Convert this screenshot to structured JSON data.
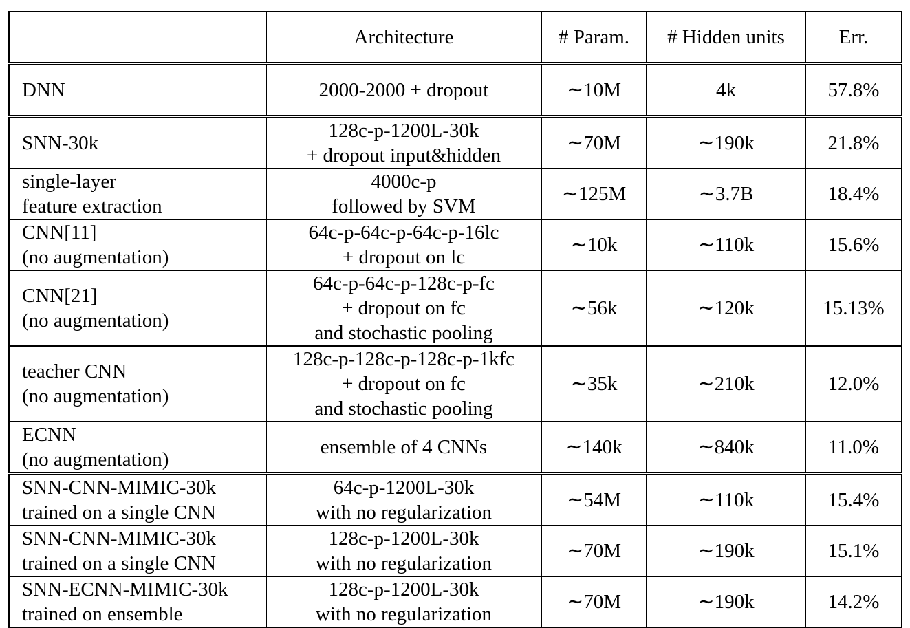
{
  "headers": [
    "",
    "Architecture",
    "# Param.",
    "# Hidden units",
    "Err."
  ],
  "rows": [
    {
      "model": [
        "DNN"
      ],
      "arch": [
        "2000-2000 + dropout"
      ],
      "params": "∼10M",
      "hidden": "4k",
      "err": "57.8%",
      "bold": false,
      "lines": 1
    },
    {
      "model": [
        "SNN-30k"
      ],
      "arch": [
        "128c-p-1200L-30k",
        "+ dropout input&hidden"
      ],
      "params": "∼70M",
      "hidden": "∼190k",
      "err": "21.8%",
      "bold": false,
      "lines": 2
    },
    {
      "model": [
        "single-layer",
        "feature extraction"
      ],
      "arch": [
        "4000c-p",
        "followed by SVM"
      ],
      "params": "∼125M",
      "hidden": "∼3.7B",
      "err": "18.4%",
      "bold": false,
      "lines": 2
    },
    {
      "model": [
        "CNN[11]",
        "(no augmentation)"
      ],
      "arch": [
        "64c-p-64c-p-64c-p-16lc",
        "+ dropout on lc"
      ],
      "params": "∼10k",
      "hidden": "∼110k",
      "err": "15.6%",
      "bold": false,
      "lines": 2
    },
    {
      "model": [
        "CNN[21]",
        "(no augmentation)"
      ],
      "arch": [
        "64c-p-64c-p-128c-p-fc",
        "+ dropout on fc",
        "and stochastic pooling"
      ],
      "params": "∼56k",
      "hidden": "∼120k",
      "err": "15.13%",
      "bold": false,
      "lines": 3
    },
    {
      "model": [
        "teacher CNN",
        "(no augmentation)"
      ],
      "arch": [
        "128c-p-128c-p-128c-p-1kfc",
        "+ dropout on fc",
        "and stochastic pooling"
      ],
      "params": "∼35k",
      "hidden": "∼210k",
      "err": "12.0%",
      "bold": true,
      "lines": 3
    },
    {
      "model": [
        "ECNN",
        "(no augmentation)"
      ],
      "arch": [
        "ensemble of 4 CNNs"
      ],
      "params": "∼140k",
      "hidden": "∼840k",
      "err": "11.0%",
      "bold": true,
      "lines": 2
    },
    {
      "model": [
        "SNN-CNN-MIMIC-30k",
        "trained on a single CNN"
      ],
      "arch": [
        "64c-p-1200L-30k",
        "with no regularization"
      ],
      "params": "∼54M",
      "hidden": "∼110k",
      "err": "15.4%",
      "bold": true,
      "lines": 2
    },
    {
      "model": [
        "SNN-CNN-MIMIC-30k",
        "trained on a single CNN"
      ],
      "arch": [
        "128c-p-1200L-30k",
        "with no regularization"
      ],
      "params": "∼70M",
      "hidden": "∼190k",
      "err": "15.1%",
      "bold": true,
      "lines": 2
    },
    {
      "model": [
        "SNN-ECNN-MIMIC-30k",
        "trained on ensemble"
      ],
      "arch": [
        "128c-p-1200L-30k",
        "with no regularization"
      ],
      "params": "∼70M",
      "hidden": "∼190k",
      "err": "14.2%",
      "bold": true,
      "lines": 2
    }
  ]
}
